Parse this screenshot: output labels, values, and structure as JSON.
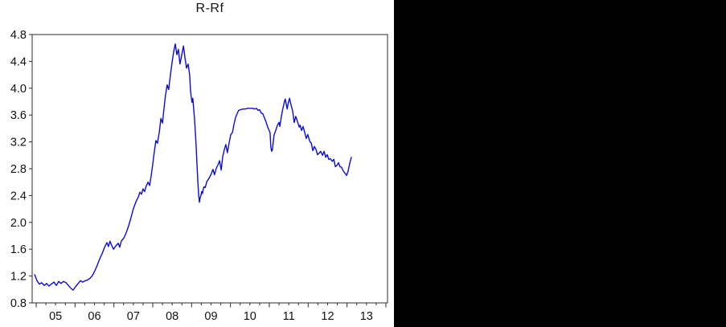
{
  "chart_data": {
    "type": "line",
    "title": "R-Rf",
    "legend": "none",
    "grid": false,
    "line_color": "#0b0bdf",
    "axis_color": "#2b2b2b",
    "text_color": "#111111",
    "y_axis": {
      "min": 0.8,
      "max": 4.8,
      "tick_step": 0.4,
      "tick_labels": [
        "0.8",
        "1.2",
        "1.6",
        "2.0",
        "2.4",
        "2.8",
        "3.2",
        "3.6",
        "4.0",
        "4.4",
        "4.8"
      ]
    },
    "x_axis": {
      "axis_start": 2004.9,
      "axis_end": 2014.05,
      "minor_per_year": 4,
      "tick_years": [
        2005,
        2006,
        2007,
        2008,
        2009,
        2010,
        2011,
        2012,
        2013,
        2014
      ],
      "labels": [
        "05",
        "06",
        "07",
        "08",
        "09",
        "10",
        "11",
        "12",
        "13"
      ]
    },
    "series": [
      {
        "name": "R-Rf",
        "points": [
          [
            2004.96,
            1.22
          ],
          [
            2005.02,
            1.13
          ],
          [
            2005.08,
            1.08
          ],
          [
            2005.14,
            1.1
          ],
          [
            2005.21,
            1.06
          ],
          [
            2005.27,
            1.09
          ],
          [
            2005.33,
            1.05
          ],
          [
            2005.39,
            1.08
          ],
          [
            2005.46,
            1.11
          ],
          [
            2005.52,
            1.06
          ],
          [
            2005.58,
            1.12
          ],
          [
            2005.64,
            1.09
          ],
          [
            2005.7,
            1.12
          ],
          [
            2005.77,
            1.1
          ],
          [
            2005.83,
            1.06
          ],
          [
            2005.89,
            1.02
          ],
          [
            2005.95,
            0.99
          ],
          [
            2006.01,
            1.04
          ],
          [
            2006.08,
            1.09
          ],
          [
            2006.14,
            1.13
          ],
          [
            2006.2,
            1.11
          ],
          [
            2006.26,
            1.13
          ],
          [
            2006.32,
            1.14
          ],
          [
            2006.39,
            1.17
          ],
          [
            2006.45,
            1.21
          ],
          [
            2006.51,
            1.28
          ],
          [
            2006.57,
            1.36
          ],
          [
            2006.63,
            1.45
          ],
          [
            2006.7,
            1.54
          ],
          [
            2006.76,
            1.63
          ],
          [
            2006.82,
            1.7
          ],
          [
            2006.86,
            1.64
          ],
          [
            2006.9,
            1.72
          ],
          [
            2006.94,
            1.66
          ],
          [
            2006.99,
            1.6
          ],
          [
            2007.05,
            1.65
          ],
          [
            2007.11,
            1.69
          ],
          [
            2007.15,
            1.63
          ],
          [
            2007.19,
            1.72
          ],
          [
            2007.26,
            1.77
          ],
          [
            2007.32,
            1.85
          ],
          [
            2007.38,
            1.95
          ],
          [
            2007.44,
            2.07
          ],
          [
            2007.5,
            2.2
          ],
          [
            2007.57,
            2.31
          ],
          [
            2007.63,
            2.38
          ],
          [
            2007.67,
            2.45
          ],
          [
            2007.71,
            2.42
          ],
          [
            2007.75,
            2.5
          ],
          [
            2007.79,
            2.46
          ],
          [
            2007.83,
            2.54
          ],
          [
            2007.88,
            2.6
          ],
          [
            2007.92,
            2.55
          ],
          [
            2007.96,
            2.7
          ],
          [
            2008.0,
            2.87
          ],
          [
            2008.04,
            3.05
          ],
          [
            2008.08,
            3.22
          ],
          [
            2008.12,
            3.18
          ],
          [
            2008.17,
            3.35
          ],
          [
            2008.21,
            3.55
          ],
          [
            2008.25,
            3.48
          ],
          [
            2008.29,
            3.7
          ],
          [
            2008.33,
            3.9
          ],
          [
            2008.37,
            4.05
          ],
          [
            2008.41,
            3.98
          ],
          [
            2008.46,
            4.22
          ],
          [
            2008.5,
            4.4
          ],
          [
            2008.54,
            4.55
          ],
          [
            2008.58,
            4.66
          ],
          [
            2008.62,
            4.5
          ],
          [
            2008.66,
            4.58
          ],
          [
            2008.7,
            4.36
          ],
          [
            2008.74,
            4.48
          ],
          [
            2008.79,
            4.63
          ],
          [
            2008.83,
            4.45
          ],
          [
            2008.87,
            4.3
          ],
          [
            2008.91,
            4.36
          ],
          [
            2008.95,
            4.2
          ],
          [
            2008.97,
            3.98
          ],
          [
            2008.99,
            3.87
          ],
          [
            2009.01,
            3.79
          ],
          [
            2009.03,
            3.85
          ],
          [
            2009.06,
            3.65
          ],
          [
            2009.08,
            3.5
          ],
          [
            2009.1,
            3.3
          ],
          [
            2009.12,
            3.1
          ],
          [
            2009.14,
            2.85
          ],
          [
            2009.16,
            2.6
          ],
          [
            2009.18,
            2.43
          ],
          [
            2009.2,
            2.3
          ],
          [
            2009.22,
            2.37
          ],
          [
            2009.24,
            2.4
          ],
          [
            2009.26,
            2.46
          ],
          [
            2009.28,
            2.43
          ],
          [
            2009.3,
            2.5
          ],
          [
            2009.32,
            2.53
          ],
          [
            2009.35,
            2.52
          ],
          [
            2009.37,
            2.56
          ],
          [
            2009.39,
            2.61
          ],
          [
            2009.43,
            2.64
          ],
          [
            2009.47,
            2.68
          ],
          [
            2009.51,
            2.73
          ],
          [
            2009.55,
            2.79
          ],
          [
            2009.59,
            2.71
          ],
          [
            2009.63,
            2.8
          ],
          [
            2009.68,
            2.86
          ],
          [
            2009.72,
            2.92
          ],
          [
            2009.76,
            2.78
          ],
          [
            2009.8,
            2.98
          ],
          [
            2009.84,
            3.08
          ],
          [
            2009.88,
            3.16
          ],
          [
            2009.92,
            3.04
          ],
          [
            2009.97,
            3.2
          ],
          [
            2010.01,
            3.31
          ],
          [
            2010.05,
            3.34
          ],
          [
            2010.09,
            3.46
          ],
          [
            2010.13,
            3.56
          ],
          [
            2010.17,
            3.62
          ],
          [
            2010.21,
            3.67
          ],
          [
            2010.26,
            3.68
          ],
          [
            2010.32,
            3.69
          ],
          [
            2010.38,
            3.69
          ],
          [
            2010.44,
            3.7
          ],
          [
            2010.5,
            3.7
          ],
          [
            2010.57,
            3.7
          ],
          [
            2010.63,
            3.69
          ],
          [
            2010.67,
            3.7
          ],
          [
            2010.71,
            3.67
          ],
          [
            2010.75,
            3.68
          ],
          [
            2010.79,
            3.63
          ],
          [
            2010.83,
            3.62
          ],
          [
            2010.88,
            3.55
          ],
          [
            2010.92,
            3.49
          ],
          [
            2010.96,
            3.42
          ],
          [
            2011.0,
            3.36
          ],
          [
            2011.02,
            3.34
          ],
          [
            2011.04,
            3.12
          ],
          [
            2011.06,
            3.06
          ],
          [
            2011.08,
            3.08
          ],
          [
            2011.12,
            3.3
          ],
          [
            2011.17,
            3.38
          ],
          [
            2011.21,
            3.45
          ],
          [
            2011.25,
            3.49
          ],
          [
            2011.27,
            3.43
          ],
          [
            2011.31,
            3.58
          ],
          [
            2011.35,
            3.7
          ],
          [
            2011.39,
            3.8
          ],
          [
            2011.41,
            3.84
          ],
          [
            2011.46,
            3.69
          ],
          [
            2011.48,
            3.76
          ],
          [
            2011.52,
            3.85
          ],
          [
            2011.56,
            3.75
          ],
          [
            2011.6,
            3.66
          ],
          [
            2011.64,
            3.49
          ],
          [
            2011.68,
            3.58
          ],
          [
            2011.72,
            3.51
          ],
          [
            2011.77,
            3.42
          ],
          [
            2011.79,
            3.45
          ],
          [
            2011.83,
            3.37
          ],
          [
            2011.87,
            3.43
          ],
          [
            2011.91,
            3.34
          ],
          [
            2011.95,
            3.25
          ],
          [
            2011.99,
            3.31
          ],
          [
            2012.04,
            3.21
          ],
          [
            2012.08,
            3.18
          ],
          [
            2012.12,
            3.07
          ],
          [
            2012.16,
            3.13
          ],
          [
            2012.2,
            3.09
          ],
          [
            2012.24,
            3.01
          ],
          [
            2012.28,
            3.03
          ],
          [
            2012.32,
            3.06
          ],
          [
            2012.37,
            3.0
          ],
          [
            2012.41,
            3.06
          ],
          [
            2012.45,
            2.97
          ],
          [
            2012.49,
            3.01
          ],
          [
            2012.53,
            2.94
          ],
          [
            2012.57,
            2.95
          ],
          [
            2012.62,
            2.91
          ],
          [
            2012.66,
            2.94
          ],
          [
            2012.7,
            2.83
          ],
          [
            2012.74,
            2.85
          ],
          [
            2012.78,
            2.89
          ],
          [
            2012.82,
            2.83
          ],
          [
            2012.86,
            2.82
          ],
          [
            2012.9,
            2.77
          ],
          [
            2012.95,
            2.73
          ],
          [
            2012.99,
            2.7
          ],
          [
            2013.03,
            2.77
          ],
          [
            2013.07,
            2.88
          ],
          [
            2013.11,
            2.97
          ]
        ]
      }
    ]
  }
}
